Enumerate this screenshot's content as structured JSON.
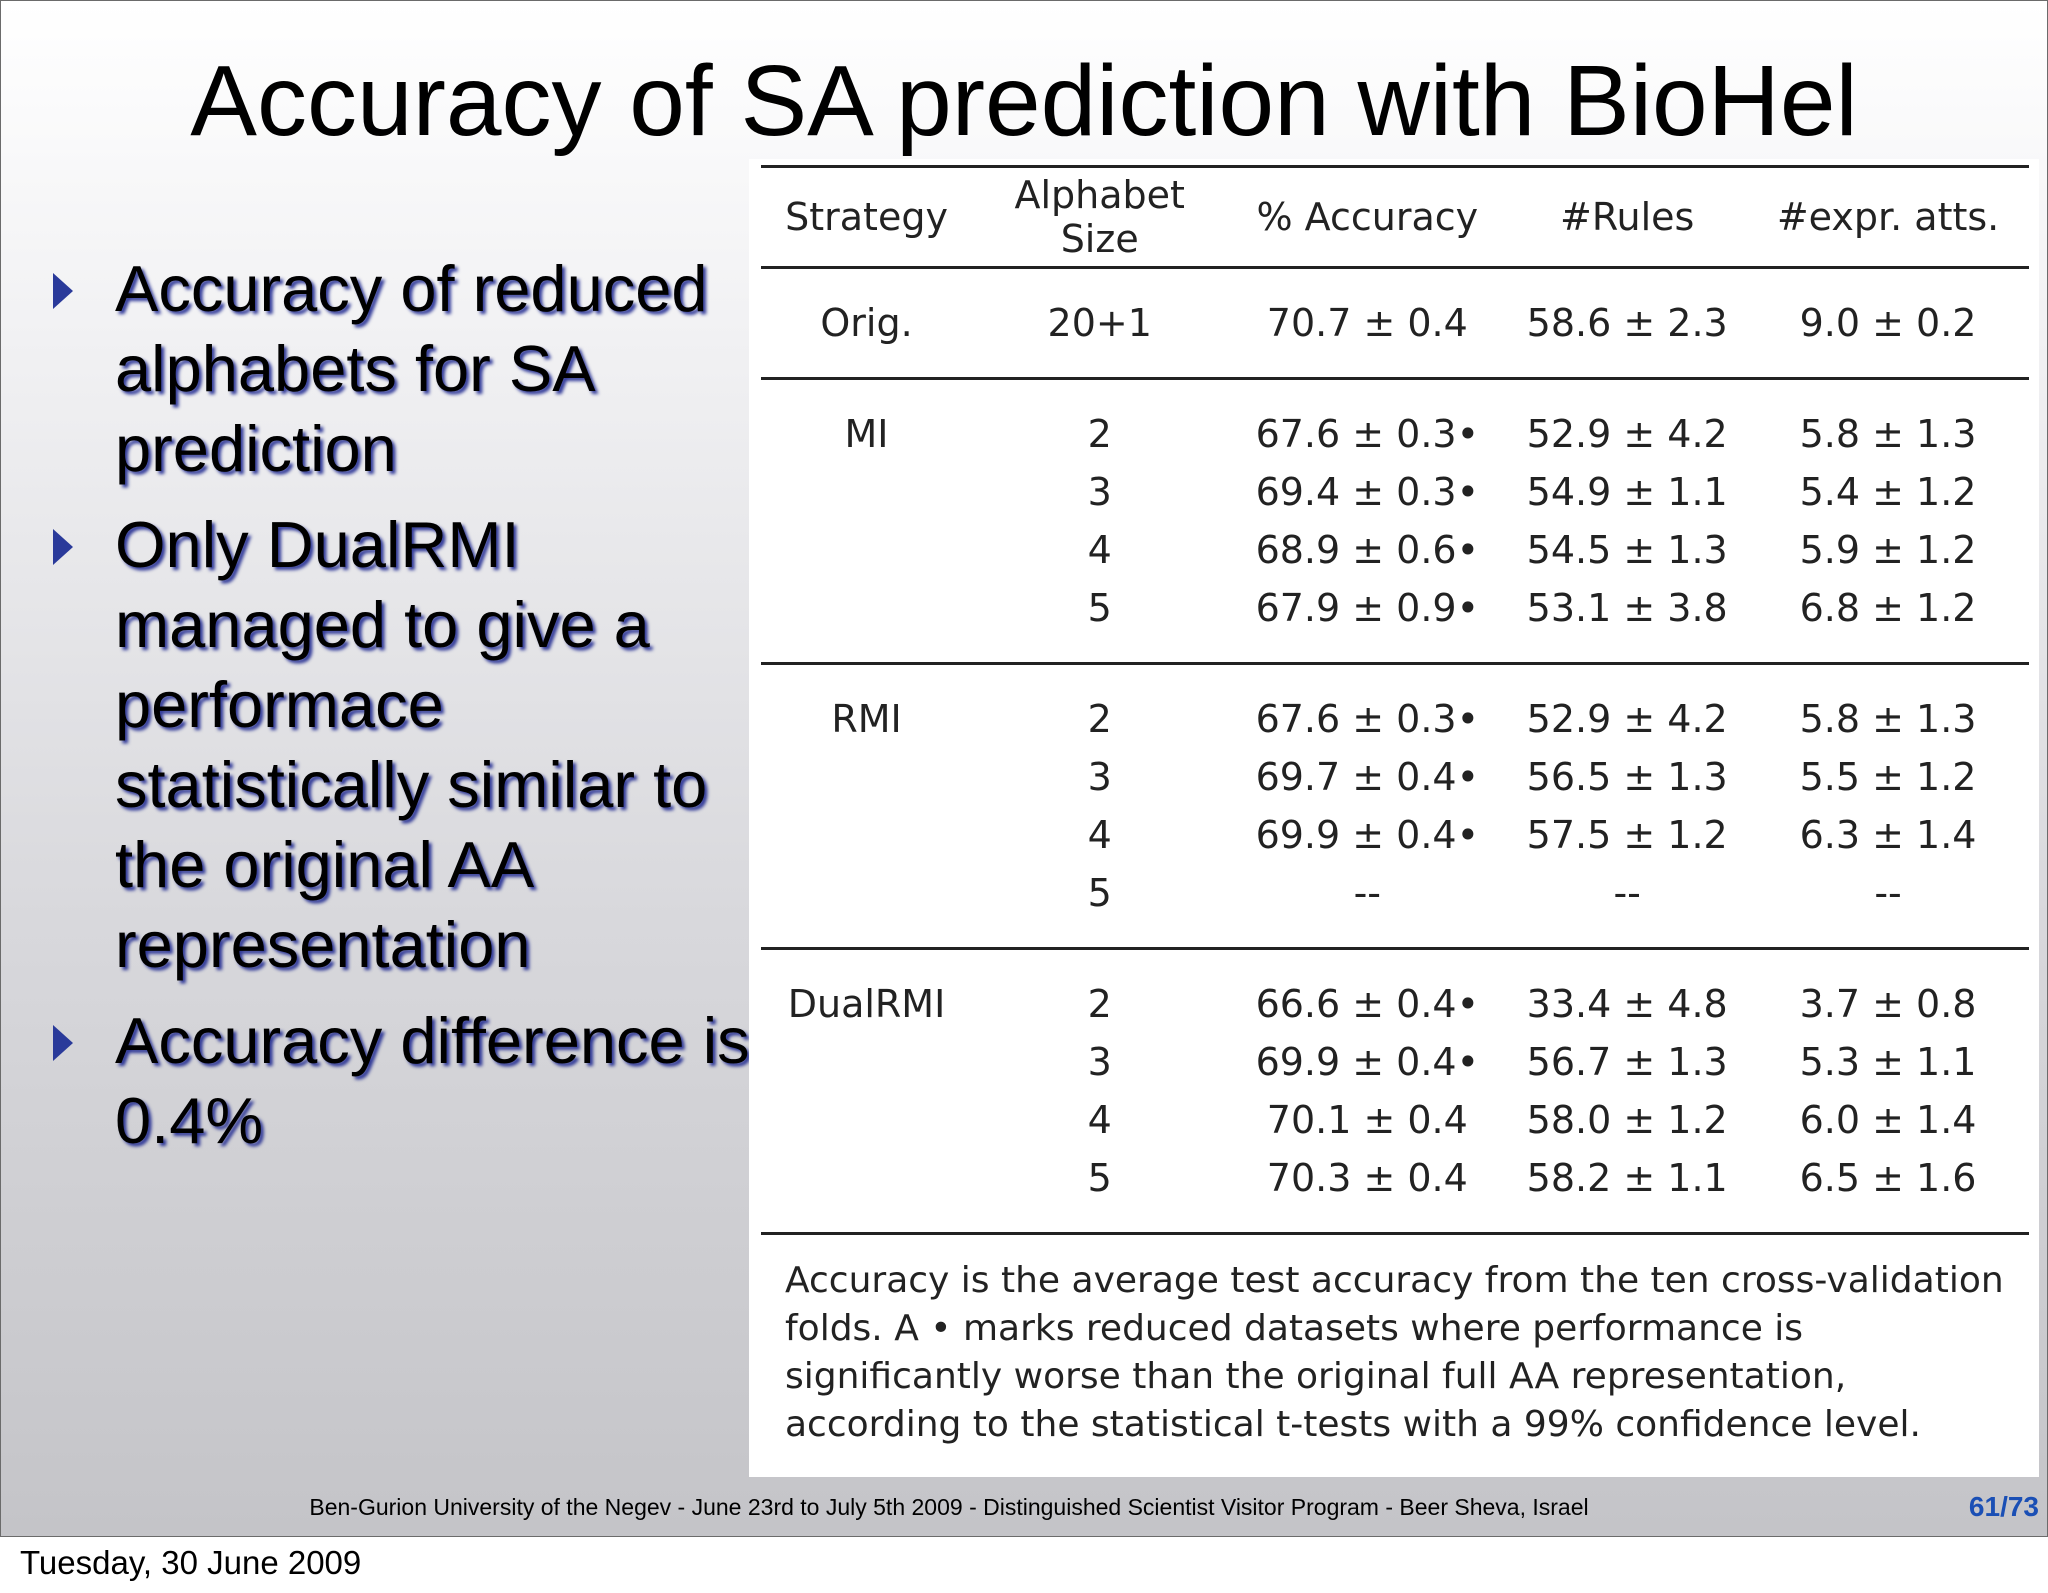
{
  "slide": {
    "title": "Accuracy of SA prediction with BioHel",
    "bullets": [
      "Accuracy of reduced alphabets for SA prediction",
      "Only DualRMI managed to give a performace statistically similar to the original AA representation",
      "Accuracy difference is 0.4%"
    ],
    "footer": "Ben-Gurion University of the Negev - June 23rd to July 5th 2009 -  Distinguished Scientist Visitor Program - Beer Sheva, Israel",
    "page_number": "61/73"
  },
  "table": {
    "headers": [
      "Strategy",
      "Alphabet Size",
      "% Accuracy",
      "#Rules",
      "#expr. atts."
    ],
    "groups": [
      {
        "strategy": "Orig.",
        "rows": [
          [
            "20+1",
            "70.7 ± 0.4",
            "58.6 ± 2.3",
            "9.0 ± 0.2"
          ]
        ]
      },
      {
        "strategy": "MI",
        "rows": [
          [
            "2",
            "67.6 ± 0.3•",
            "52.9 ± 4.2",
            "5.8 ± 1.3"
          ],
          [
            "3",
            "69.4 ± 0.3•",
            "54.9 ± 1.1",
            "5.4 ± 1.2"
          ],
          [
            "4",
            "68.9 ± 0.6•",
            "54.5 ± 1.3",
            "5.9 ± 1.2"
          ],
          [
            "5",
            "67.9 ± 0.9•",
            "53.1 ± 3.8",
            "6.8 ± 1.2"
          ]
        ]
      },
      {
        "strategy": "RMI",
        "rows": [
          [
            "2",
            "67.6 ± 0.3•",
            "52.9 ± 4.2",
            "5.8 ± 1.3"
          ],
          [
            "3",
            "69.7 ± 0.4•",
            "56.5 ± 1.3",
            "5.5 ± 1.2"
          ],
          [
            "4",
            "69.9 ± 0.4•",
            "57.5 ± 1.2",
            "6.3 ± 1.4"
          ],
          [
            "5",
            "--",
            "--",
            "--"
          ]
        ]
      },
      {
        "strategy": "DualRMI",
        "rows": [
          [
            "2",
            "66.6 ± 0.4•",
            "33.4 ± 4.8",
            "3.7 ± 0.8"
          ],
          [
            "3",
            "69.9 ± 0.4•",
            "56.7 ± 1.3",
            "5.3 ± 1.1"
          ],
          [
            "4",
            "70.1 ± 0.4",
            "58.0 ± 1.2",
            "6.0 ± 1.4"
          ],
          [
            "5",
            "70.3 ± 0.4",
            "58.2 ± 1.1",
            "6.5 ± 1.6"
          ]
        ]
      }
    ],
    "caption": "Accuracy is the average test accuracy from the ten cross-validation folds. A • marks reduced datasets where performance is significantly worse than the original full AA representation, according to the statistical t-tests with a 99% confidence level."
  },
  "date": "Tuesday, 30 June 2009"
}
